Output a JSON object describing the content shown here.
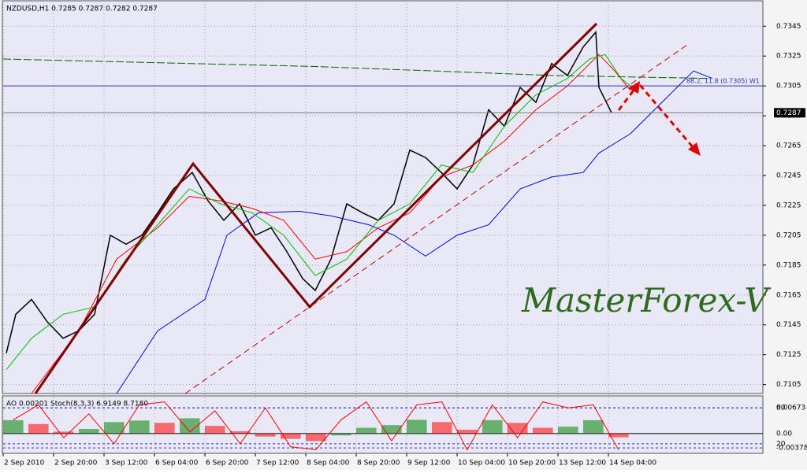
{
  "watermark": "MasterForex-V",
  "chart_data": [
    {
      "type": "line",
      "title": "NZDUSD,H1  0.7285 0.7287 0.7282 0.7287",
      "xlim": [
        0,
        241
      ],
      "ylim": [
        0.7099,
        0.7362
      ],
      "grid": true,
      "xticks": [
        {
          "value": 0,
          "label": "2 Sep 2010"
        },
        {
          "value": 16,
          "label": "2 Sep 20:00"
        },
        {
          "value": 32,
          "label": "3 Sep 12:00"
        },
        {
          "value": 48,
          "label": "6 Sep 04:00"
        },
        {
          "value": 64,
          "label": "6 Sep 20:00"
        },
        {
          "value": 80,
          "label": "7 Sep 12:00"
        },
        {
          "value": 96,
          "label": "8 Sep 04:00"
        },
        {
          "value": 112,
          "label": "8 Sep 20:00"
        },
        {
          "value": 128,
          "label": "9 Sep 12:00"
        },
        {
          "value": 144,
          "label": "10 Sep 04:00"
        },
        {
          "value": 160,
          "label": "10 Sep 20:00"
        },
        {
          "value": 176,
          "label": "13 Sep 12:00"
        },
        {
          "value": 192,
          "label": "14 Sep 04:00"
        }
      ],
      "yticks": [
        0.7105,
        0.7125,
        0.7145,
        0.7165,
        0.7185,
        0.7205,
        0.7225,
        0.7245,
        0.7265,
        0.7285,
        0.7305,
        0.7325,
        0.7345
      ],
      "level": {
        "value": 0.7305,
        "label": "88.2, 11.8 (0.7305) W1",
        "color": "#3030c0"
      },
      "last_price": 0.7287,
      "series": [
        {
          "color": "#000000",
          "x": [
            1,
            4,
            9,
            14,
            19,
            24,
            29,
            34,
            39,
            44,
            49,
            54,
            60,
            65,
            70,
            75,
            80,
            85,
            90,
            95,
            99,
            104,
            109,
            114,
            119,
            124,
            129,
            134,
            139,
            144,
            149,
            154,
            159,
            164,
            169,
            174,
            179,
            184,
            188,
            189,
            193
          ],
          "values": [
            0.7126,
            0.7152,
            0.7162,
            0.7147,
            0.7136,
            0.7141,
            0.7152,
            0.7205,
            0.7199,
            0.7205,
            0.722,
            0.7236,
            0.7247,
            0.7228,
            0.7215,
            0.7226,
            0.7205,
            0.721,
            0.7194,
            0.7176,
            0.7168,
            0.7189,
            0.7226,
            0.722,
            0.7215,
            0.7226,
            0.7262,
            0.7257,
            0.7247,
            0.7236,
            0.7252,
            0.7289,
            0.7278,
            0.7304,
            0.7294,
            0.732,
            0.7312,
            0.7331,
            0.7341,
            0.7304,
            0.7287
          ]
        },
        {
          "color": "#0000ff",
          "x": [
            36,
            49,
            64,
            71,
            81,
            94,
            104,
            116,
            124,
            134,
            144,
            154,
            164,
            174,
            184,
            189,
            199,
            209,
            219,
            225
          ],
          "values": [
            0.7099,
            0.7141,
            0.7162,
            0.7205,
            0.722,
            0.7221,
            0.7218,
            0.7212,
            0.7205,
            0.7191,
            0.7205,
            0.7212,
            0.7236,
            0.7244,
            0.7247,
            0.726,
            0.7273,
            0.7294,
            0.7315,
            0.731
          ]
        },
        {
          "color": "#ff0000",
          "x": [
            9,
            24,
            36,
            49,
            59,
            69,
            79,
            89,
            99,
            109,
            119,
            129,
            139,
            149,
            159,
            169,
            179,
            189,
            194,
            199
          ],
          "values": [
            0.7099,
            0.7141,
            0.7189,
            0.721,
            0.7231,
            0.7228,
            0.7223,
            0.7215,
            0.7189,
            0.7194,
            0.721,
            0.722,
            0.7244,
            0.7252,
            0.7268,
            0.7289,
            0.7305,
            0.7326,
            0.7315,
            0.7302
          ]
        },
        {
          "color": "#00c000",
          "x": [
            1,
            9,
            19,
            29,
            39,
            49,
            59,
            69,
            79,
            89,
            99,
            109,
            119,
            129,
            139,
            149,
            159,
            169,
            179,
            186,
            191,
            196,
            199
          ],
          "values": [
            0.7115,
            0.7136,
            0.7152,
            0.7157,
            0.7189,
            0.7212,
            0.7236,
            0.7226,
            0.722,
            0.7205,
            0.7178,
            0.7189,
            0.7215,
            0.7226,
            0.7252,
            0.7247,
            0.7278,
            0.7299,
            0.731,
            0.7323,
            0.7326,
            0.731,
            0.7305
          ]
        },
        {
          "color": "#006400",
          "dashed": true,
          "x": [
            0,
            99,
            174,
            224
          ],
          "values": [
            0.7323,
            0.7318,
            0.7312,
            0.731
          ]
        }
      ]
    },
    {
      "type": "bar",
      "title": "AO 0.00201  Stoch(8,3,3) 6.9149 8.7180",
      "xlim": [
        0,
        241
      ],
      "ylim": [
        -0.0052,
        0.00988
      ],
      "y2lim": [
        4,
        100
      ],
      "yticks": [
        0.00673,
        {
          "value": 0,
          "label": "0.00"
        },
        -0.00378
      ],
      "y2ticks": [
        80,
        20
      ],
      "x": [
        0,
        8,
        16,
        24,
        32,
        40,
        48,
        56,
        64,
        72,
        80,
        88,
        96,
        104,
        112,
        120,
        128,
        136,
        144,
        152,
        160,
        168,
        176,
        184,
        192
      ],
      "down_color": "#ff0000",
      "series": [
        {
          "color": "#008000",
          "values": [
            0.0035,
            0.0025,
            0.0005,
            0.0012,
            0.003,
            0.0034,
            0.0028,
            0.004,
            0.002,
            0.0006,
            -0.0008,
            -0.0014,
            -0.002,
            -0.0005,
            0.0015,
            0.0022,
            0.0036,
            0.003,
            0.001,
            0.0035,
            0.0028,
            0.0015,
            0.0018,
            0.0035,
            -0.001
          ]
        },
        {
          "color": "#ff0000",
          "axis": "y2",
          "values": [
            60,
            85,
            30,
            70,
            20,
            85,
            90,
            40,
            75,
            20,
            80,
            15,
            10,
            60,
            90,
            25,
            85,
            90,
            10,
            85,
            30,
            90,
            80,
            85,
            10
          ]
        }
      ]
    }
  ]
}
